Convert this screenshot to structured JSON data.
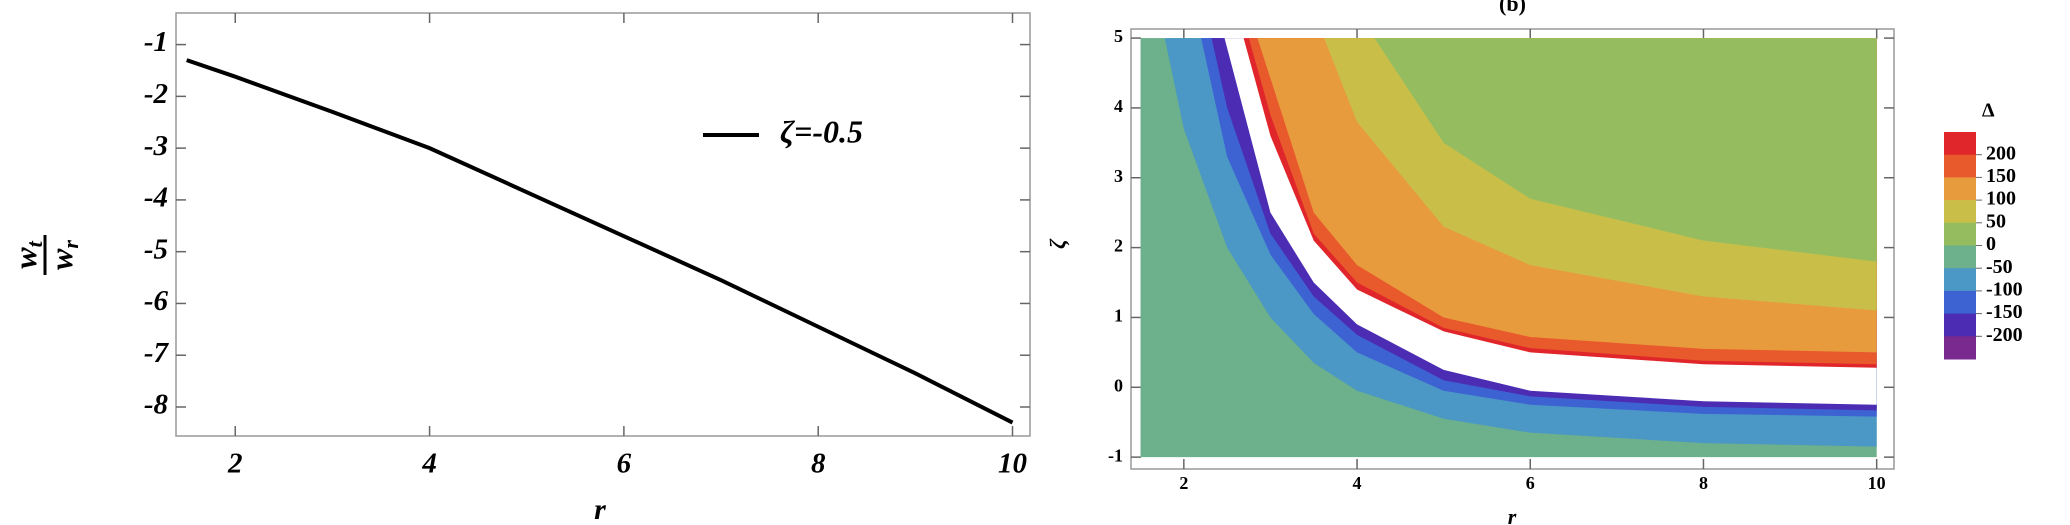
{
  "chart_data": [
    {
      "type": "line",
      "xlabel": "r",
      "ylabel": {
        "numerator": "w",
        "numerator_sub": "t",
        "denominator": "w",
        "denominator_sub": "r"
      },
      "xlim": [
        1.39,
        10.18
      ],
      "ylim": [
        -8.56,
        -0.39
      ],
      "xticks": [
        2,
        4,
        6,
        8,
        10
      ],
      "yticks": [
        -1,
        -2,
        -3,
        -4,
        -5,
        -6,
        -7,
        -8
      ],
      "grid": false,
      "x": [
        1.5,
        2,
        3,
        4,
        5,
        6,
        7,
        8,
        9,
        10
      ],
      "series": [
        {
          "name": "ζ=-0.5",
          "color": "#000000",
          "values": [
            -1.3,
            -1.62,
            -2.3,
            -3.0,
            -3.85,
            -4.7,
            -5.55,
            -6.45,
            -7.35,
            -8.3
          ]
        }
      ]
    },
    {
      "type": "contour",
      "title": "(b)",
      "xlabel": "r",
      "ylabel": "ζ",
      "xlim": [
        1.39,
        10.2
      ],
      "ylim": [
        -1.17,
        5.13
      ],
      "xticks": [
        2,
        4,
        6,
        8,
        10
      ],
      "yticks": [
        -1,
        0,
        1,
        2,
        3,
        4,
        5
      ],
      "domain": {
        "r": [
          1.5,
          10
        ],
        "zeta": [
          -1,
          5
        ]
      },
      "base_color": "#6cb08c",
      "boundaries": [
        {
          "level": -50,
          "fill": "#4b97c5",
          "r": [
            1.78,
            2,
            2.5,
            3,
            3.5,
            4,
            5,
            6,
            8,
            10
          ],
          "zeta": [
            5,
            3.7,
            2.0,
            1.0,
            0.35,
            -0.05,
            -0.45,
            -0.65,
            -0.8,
            -0.85
          ]
        },
        {
          "level": -100,
          "fill": "#3d63d3",
          "r": [
            2.2,
            2.5,
            3,
            3.5,
            4,
            5,
            6,
            8,
            10
          ],
          "zeta": [
            5,
            3.3,
            1.9,
            1.05,
            0.5,
            -0.05,
            -0.25,
            -0.38,
            -0.42
          ]
        },
        {
          "level": -150,
          "fill": "#4b2cb3",
          "r": [
            2.32,
            2.5,
            3,
            3.5,
            4,
            5,
            6,
            8,
            10
          ],
          "zeta": [
            5,
            4.0,
            2.2,
            1.3,
            0.75,
            0.1,
            -0.13,
            -0.28,
            -0.33
          ]
        },
        {
          "level": -200,
          "fill": "#ffffff",
          "r": [
            2.47,
            3,
            3.5,
            4,
            5,
            6,
            8,
            10
          ],
          "zeta": [
            5,
            2.5,
            1.5,
            0.9,
            0.25,
            -0.05,
            -0.2,
            -0.25
          ]
        },
        {
          "level": 200,
          "fill": "#e0262a",
          "r": [
            2.69,
            3,
            3.5,
            4,
            5,
            6,
            8,
            10
          ],
          "zeta": [
            5,
            3.6,
            2.1,
            1.4,
            0.8,
            0.5,
            0.33,
            0.28
          ]
        },
        {
          "level": 150,
          "fill": "#e8592c",
          "r": [
            2.75,
            3,
            3.5,
            4,
            5,
            6,
            8,
            10
          ],
          "zeta": [
            5,
            3.9,
            2.2,
            1.5,
            0.85,
            0.56,
            0.38,
            0.33
          ]
        },
        {
          "level": 100,
          "fill": "#e89b3d",
          "r": [
            2.85,
            3.5,
            4,
            5,
            6,
            8,
            10
          ],
          "zeta": [
            5,
            2.5,
            1.75,
            1.0,
            0.72,
            0.55,
            0.5
          ]
        },
        {
          "level": 50,
          "fill": "#c9bf48",
          "r": [
            3.62,
            4,
            5,
            6,
            8,
            10
          ],
          "zeta": [
            5,
            3.8,
            2.3,
            1.75,
            1.3,
            1.1
          ]
        },
        {
          "level": 0,
          "fill": "#95bd60",
          "r": [
            4.2,
            5,
            6,
            8,
            10
          ],
          "zeta": [
            5,
            3.5,
            2.7,
            2.1,
            1.8
          ]
        }
      ],
      "colorbar": {
        "title": "Δ",
        "ticks": [
          200,
          150,
          100,
          50,
          0,
          -50,
          -100,
          -150,
          -200
        ],
        "colors": [
          "#e0262a",
          "#e8592c",
          "#e89b3d",
          "#c9bf48",
          "#95bd60",
          "#6cb08c",
          "#4b97c5",
          "#3d63d3",
          "#4b2cb3",
          "#7a2a8e"
        ]
      }
    }
  ]
}
